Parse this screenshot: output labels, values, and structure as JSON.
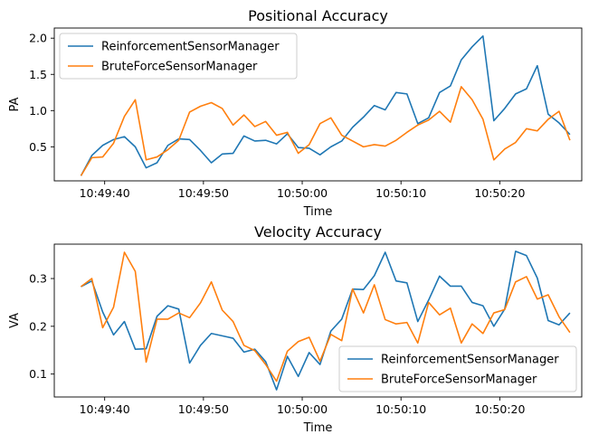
{
  "chart_data": [
    {
      "type": "line",
      "title": "Positional Accuracy",
      "xlabel": "Time",
      "ylabel": "PA",
      "x_ticks": [
        "10:49:40",
        "10:49:50",
        "10:50:00",
        "10:50:10",
        "10:50:20"
      ],
      "y_ticks": [
        "0.5",
        "1.0",
        "1.5",
        "2.0"
      ],
      "xlim": [
        "10:49:34.9",
        "10:50:28.3"
      ],
      "ylim": [
        0.03,
        2.14
      ],
      "legend": "upper-left",
      "grid": false,
      "series": [
        {
          "name": "ReinforcementSensorManager",
          "color": "#1f77b4",
          "x": [
            "10:49:37.6",
            "10:49:38.7",
            "10:49:39.8",
            "10:49:40.9",
            "10:49:42.0",
            "10:49:43.1",
            "10:49:44.2",
            "10:49:45.3",
            "10:49:46.4",
            "10:49:47.5",
            "10:49:48.6",
            "10:49:49.7",
            "10:49:50.8",
            "10:49:51.9",
            "10:49:53.0",
            "10:49:54.1",
            "10:49:55.2",
            "10:49:56.3",
            "10:49:57.4",
            "10:49:58.5",
            "10:49:59.6",
            "10:50:00.7",
            "10:50:01.8",
            "10:50:02.9",
            "10:50:04.0",
            "10:50:05.1",
            "10:50:06.2",
            "10:50:07.3",
            "10:50:08.4",
            "10:50:09.5",
            "10:50:10.6",
            "10:50:11.7",
            "10:50:12.8",
            "10:50:13.9",
            "10:50:15.0",
            "10:50:16.1",
            "10:50:17.2",
            "10:50:18.3",
            "10:50:19.4",
            "10:50:20.5",
            "10:50:21.6",
            "10:50:22.7",
            "10:50:23.8",
            "10:50:24.9",
            "10:50:26.0",
            "10:50:27.1"
          ],
          "values": [
            0.1,
            0.38,
            0.52,
            0.6,
            0.64,
            0.5,
            0.21,
            0.28,
            0.52,
            0.61,
            0.6,
            0.45,
            0.28,
            0.4,
            0.41,
            0.65,
            0.58,
            0.59,
            0.54,
            0.68,
            0.49,
            0.48,
            0.39,
            0.5,
            0.58,
            0.77,
            0.91,
            1.07,
            1.01,
            1.25,
            1.23,
            0.82,
            0.9,
            1.25,
            1.34,
            1.7,
            1.88,
            2.03,
            0.86,
            1.03,
            1.23,
            1.3,
            1.62,
            0.95,
            0.83,
            0.67
          ]
        },
        {
          "name": "BruteForceSensorManager",
          "color": "#ff7f0e",
          "x": [
            "10:49:37.6",
            "10:49:38.7",
            "10:49:39.8",
            "10:49:40.9",
            "10:49:42.0",
            "10:49:43.1",
            "10:49:44.2",
            "10:49:45.3",
            "10:49:46.4",
            "10:49:47.5",
            "10:49:48.6",
            "10:49:49.7",
            "10:49:50.8",
            "10:49:51.9",
            "10:49:53.0",
            "10:49:54.1",
            "10:49:55.2",
            "10:49:56.3",
            "10:49:57.4",
            "10:49:58.5",
            "10:49:59.6",
            "10:50:00.7",
            "10:50:01.8",
            "10:50:02.9",
            "10:50:04.0",
            "10:50:05.1",
            "10:50:06.2",
            "10:50:07.3",
            "10:50:08.4",
            "10:50:09.5",
            "10:50:10.6",
            "10:50:11.7",
            "10:50:12.8",
            "10:50:13.9",
            "10:50:15.0",
            "10:50:16.1",
            "10:50:17.2",
            "10:50:18.3",
            "10:50:19.4",
            "10:50:20.5",
            "10:50:21.6",
            "10:50:22.7",
            "10:50:23.8",
            "10:50:24.9",
            "10:50:26.0",
            "10:50:27.1"
          ],
          "values": [
            0.1,
            0.35,
            0.36,
            0.55,
            0.92,
            1.15,
            0.32,
            0.36,
            0.46,
            0.59,
            0.98,
            1.06,
            1.11,
            1.03,
            0.8,
            0.94,
            0.78,
            0.85,
            0.66,
            0.7,
            0.41,
            0.53,
            0.82,
            0.9,
            0.66,
            0.58,
            0.5,
            0.53,
            0.51,
            0.59,
            0.7,
            0.8,
            0.87,
            0.99,
            0.84,
            1.33,
            1.15,
            0.88,
            0.32,
            0.47,
            0.56,
            0.75,
            0.72,
            0.88,
            0.99,
            0.59
          ]
        }
      ]
    },
    {
      "type": "line",
      "title": "Velocity Accuracy",
      "xlabel": "Time",
      "ylabel": "VA",
      "x_ticks": [
        "10:49:40",
        "10:49:50",
        "10:50:00",
        "10:50:10",
        "10:50:20"
      ],
      "y_ticks": [
        "0.1",
        "0.2",
        "0.3"
      ],
      "xlim": [
        "10:49:34.9",
        "10:50:28.3"
      ],
      "ylim": [
        0.052,
        0.372
      ],
      "legend": "lower-right",
      "grid": false,
      "series": [
        {
          "name": "ReinforcementSensorManager",
          "color": "#1f77b4",
          "x": [
            "10:49:37.6",
            "10:49:38.7",
            "10:49:39.8",
            "10:49:40.9",
            "10:49:42.0",
            "10:49:43.1",
            "10:49:44.2",
            "10:49:45.3",
            "10:49:46.4",
            "10:49:47.5",
            "10:49:48.6",
            "10:49:49.7",
            "10:49:50.8",
            "10:49:51.9",
            "10:49:53.0",
            "10:49:54.1",
            "10:49:55.2",
            "10:49:56.3",
            "10:49:57.4",
            "10:49:58.5",
            "10:49:59.6",
            "10:50:00.7",
            "10:50:01.8",
            "10:50:02.9",
            "10:50:04.0",
            "10:50:05.1",
            "10:50:06.2",
            "10:50:07.3",
            "10:50:08.4",
            "10:50:09.5",
            "10:50:10.6",
            "10:50:11.7",
            "10:50:12.8",
            "10:50:13.9",
            "10:50:15.0",
            "10:50:16.1",
            "10:50:17.2",
            "10:50:18.3",
            "10:50:19.4",
            "10:50:20.5",
            "10:50:21.6",
            "10:50:22.7",
            "10:50:23.8",
            "10:50:24.9",
            "10:50:26.0",
            "10:50:27.1"
          ],
          "values": [
            0.283,
            0.295,
            0.23,
            0.182,
            0.21,
            0.152,
            0.153,
            0.221,
            0.243,
            0.236,
            0.123,
            0.16,
            0.185,
            0.18,
            0.175,
            0.146,
            0.152,
            0.126,
            0.067,
            0.137,
            0.095,
            0.145,
            0.12,
            0.19,
            0.215,
            0.278,
            0.277,
            0.306,
            0.355,
            0.295,
            0.291,
            0.21,
            0.255,
            0.305,
            0.284,
            0.284,
            0.25,
            0.243,
            0.2,
            0.236,
            0.357,
            0.348,
            0.301,
            0.212,
            0.203,
            0.228
          ]
        },
        {
          "name": "BruteForceSensorManager",
          "color": "#ff7f0e",
          "x": [
            "10:49:37.6",
            "10:49:38.7",
            "10:49:39.8",
            "10:49:40.9",
            "10:49:42.0",
            "10:49:43.1",
            "10:49:44.2",
            "10:49:45.3",
            "10:49:46.4",
            "10:49:47.5",
            "10:49:48.6",
            "10:49:49.7",
            "10:49:50.8",
            "10:49:51.9",
            "10:49:53.0",
            "10:49:54.1",
            "10:49:55.2",
            "10:49:56.3",
            "10:49:57.4",
            "10:49:58.5",
            "10:49:59.6",
            "10:50:00.7",
            "10:50:01.8",
            "10:50:02.9",
            "10:50:04.0",
            "10:50:05.1",
            "10:50:06.2",
            "10:50:07.3",
            "10:50:08.4",
            "10:50:09.5",
            "10:50:10.6",
            "10:50:11.7",
            "10:50:12.8",
            "10:50:13.9",
            "10:50:15.0",
            "10:50:16.1",
            "10:50:17.2",
            "10:50:18.3",
            "10:50:19.4",
            "10:50:20.5",
            "10:50:21.6",
            "10:50:22.7",
            "10:50:23.8",
            "10:50:24.9",
            "10:50:26.0",
            "10:50:27.1"
          ],
          "values": [
            0.283,
            0.3,
            0.197,
            0.24,
            0.355,
            0.315,
            0.125,
            0.215,
            0.215,
            0.228,
            0.218,
            0.249,
            0.293,
            0.234,
            0.21,
            0.16,
            0.149,
            0.12,
            0.085,
            0.148,
            0.168,
            0.177,
            0.127,
            0.183,
            0.17,
            0.278,
            0.228,
            0.287,
            0.214,
            0.205,
            0.208,
            0.165,
            0.25,
            0.224,
            0.238,
            0.165,
            0.205,
            0.185,
            0.228,
            0.235,
            0.293,
            0.304,
            0.257,
            0.266,
            0.22,
            0.187
          ]
        }
      ]
    }
  ]
}
